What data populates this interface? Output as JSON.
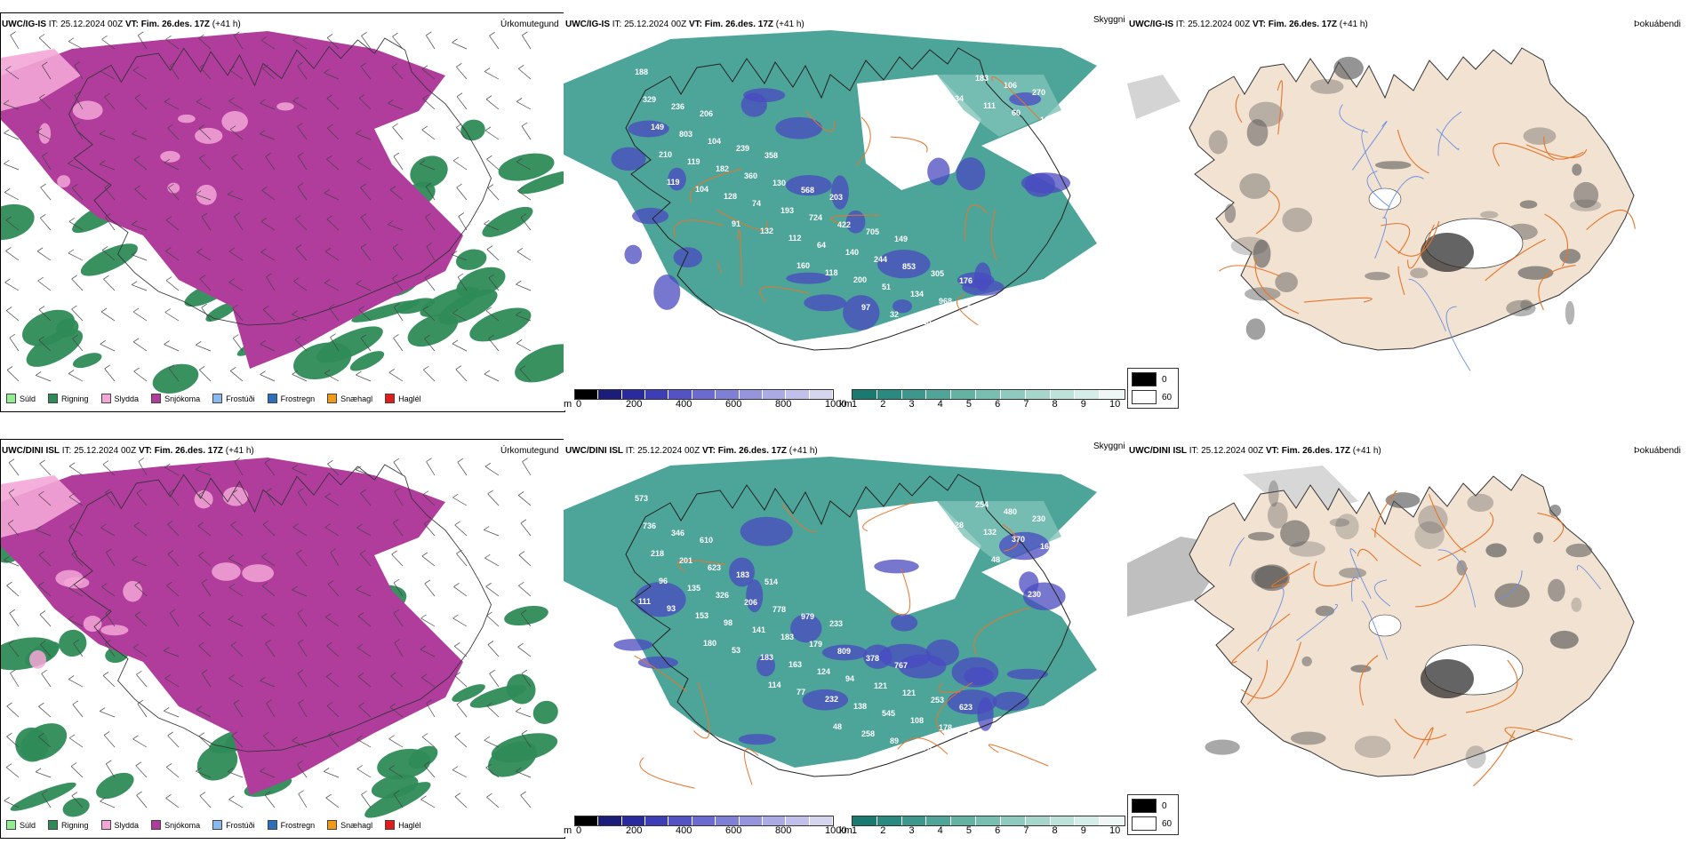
{
  "rows": [
    {
      "precip_header_model": "UWC/IG-IS",
      "precip_header_rest": " IT: 25.12.2024 00Z ",
      "precip_header_vt": "VT: Fim. 26.des. 17Z",
      "precip_header_lead": " (+41 h)",
      "precip_title": "Úrkomutegund",
      "vis_header_model": "UWC/IG-IS",
      "vis_header_rest": " IT: 25.12.2024 00Z ",
      "vis_header_vt": "VT: Fim. 26.des. 17Z",
      "vis_header_lead": " (+41 h)",
      "vis_title": "Skyggni",
      "fog_header_model": "UWC/IG-IS",
      "fog_header_rest": " IT: 25.12.2024 00Z ",
      "fog_header_vt": "VT: Fim. 26.des. 17Z",
      "fog_header_lead": " (+41 h)",
      "fog_title": "Þokuábendi",
      "ceiling_labels": [
        "188",
        "206",
        "358",
        "203",
        "149",
        "176",
        "268",
        "236",
        "239",
        "568",
        "705",
        "305",
        "187",
        "329",
        "104",
        "130",
        "422",
        "853",
        "304",
        "270",
        "803",
        "360",
        "724",
        "244",
        "968",
        "106",
        "149",
        "182",
        "193",
        "140",
        "134",
        "183",
        "182",
        "119",
        "74",
        "64",
        "51",
        "58",
        "60",
        "210",
        "128",
        "112",
        "200",
        "115",
        "111",
        "386",
        "104",
        "132",
        "118",
        "32",
        "34",
        "296",
        "119",
        "91",
        "160",
        "97"
      ],
      "ceiling_color": "#ffffff"
    },
    {
      "precip_header_model": "UWC/DINI ISL",
      "precip_header_rest": " IT: 25.12.2024 00Z ",
      "precip_header_vt": "VT: Fim. 26.des. 17Z",
      "precip_header_lead": " (+41 h)",
      "precip_title": "Úrkomutegund",
      "vis_header_model": "UWC/DINI ISL",
      "vis_header_rest": " IT: 25.12.2024 00Z ",
      "vis_header_vt": "VT: Fim. 26.des. 17Z",
      "vis_header_lead": " (+41 h)",
      "vis_title": "Skyggni",
      "fog_header_model": "UWC/DINI ISL",
      "fog_header_rest": " IT: 25.12.2024 00Z ",
      "fog_header_vt": "VT: Fim. 26.des. 17Z",
      "fog_header_lead": " (+41 h)",
      "fog_title": "Þokuábendi",
      "ceiling_labels": [
        "573",
        "610",
        "514",
        "233",
        "767",
        "623",
        "961",
        "346",
        "183",
        "979",
        "378",
        "253",
        "914",
        "736",
        "623",
        "778",
        "809",
        "121",
        "213",
        "230",
        "201",
        "206",
        "179",
        "121",
        "178",
        "480",
        "218",
        "326",
        "183",
        "94",
        "108",
        "254",
        "168",
        "135",
        "141",
        "124",
        "545",
        "271",
        "370",
        "96",
        "98",
        "163",
        "138",
        "170",
        "132",
        "97",
        "153",
        "183",
        "232",
        "89",
        "28",
        "85",
        "93",
        "53",
        "77",
        "258",
        "102",
        "48",
        "111",
        "180",
        "114",
        "48",
        "129",
        "127",
        "230"
      ],
      "ceiling_color": "#ffffff"
    }
  ],
  "precip_legend": [
    {
      "label": "Súld",
      "color": "#90ee90"
    },
    {
      "label": "Rigning",
      "color": "#2e8b57"
    },
    {
      "label": "Slydda",
      "color": "#f4a6d7"
    },
    {
      "label": "Snjókoma",
      "color": "#b03c9c"
    },
    {
      "label": "Frostúði",
      "color": "#87b9f0"
    },
    {
      "label": "Frostregn",
      "color": "#2c6fbf"
    },
    {
      "label": "Snæhagl",
      "color": "#f09a1a"
    },
    {
      "label": "Haglél",
      "color": "#e21b1b"
    }
  ],
  "ceiling_bar": {
    "unit": "m",
    "ticks": [
      "0",
      "200",
      "400",
      "600",
      "800",
      "1000"
    ],
    "colors": [
      "#000000",
      "#1c1c7a",
      "#2a2aa0",
      "#3d3db8",
      "#5353c6",
      "#6a6ad0",
      "#7f7fd8",
      "#9595de",
      "#aaaae4",
      "#c0c0ea",
      "#d5d5f0"
    ]
  },
  "vis_bar": {
    "unit": "km",
    "ticks": [
      "1",
      "2",
      "3",
      "4",
      "5",
      "6",
      "7",
      "8",
      "9",
      "10"
    ],
    "colors": [
      "#1a7a70",
      "#2a8a80",
      "#3c978c",
      "#4fa598",
      "#63b2a4",
      "#78beb1",
      "#8ecabe",
      "#a5d6cc",
      "#bde2da",
      "#d5ede8",
      "#eef7f5"
    ]
  },
  "fog_legend": {
    "high_label": "0",
    "low_label": "60",
    "high_color": "#000000",
    "low_color": "#ffffff"
  },
  "colors": {
    "snow": "#b03c9c",
    "rain": "#2e8b57",
    "sleet": "#f4a6d7",
    "vis_fill": "#3a9a8e",
    "vis_light": "#7fc3b8",
    "ceiling_blue": "#4a4ac0",
    "land_beige": "#f2e2d2",
    "road_orange": "#e8752a",
    "river_blue": "#6a8ee0"
  }
}
